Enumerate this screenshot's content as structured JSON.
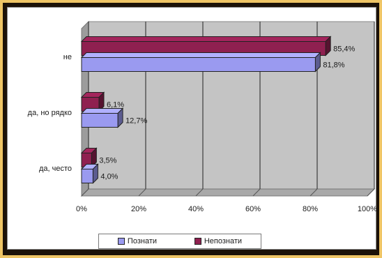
{
  "chart_data": {
    "type": "bar",
    "orientation": "horizontal",
    "three_d": true,
    "categories": [
      "не",
      "да, но рядко",
      "да, често"
    ],
    "series": [
      {
        "name": "Познати",
        "values": [
          81.8,
          12.7,
          4.0
        ],
        "labels": [
          "81,8%",
          "12,7%",
          "4,0%"
        ],
        "color": "#9a9af0"
      },
      {
        "name": "Непознати",
        "values": [
          85.4,
          6.1,
          3.5
        ],
        "labels": [
          "85,4%",
          "6,1%",
          "3,5%"
        ],
        "color": "#8f2050"
      }
    ],
    "x_ticks": [
      "0%",
      "20%",
      "40%",
      "60%",
      "80%",
      "100%"
    ],
    "xlim": [
      0,
      100
    ],
    "grid": true,
    "legend_position": "bottom"
  }
}
